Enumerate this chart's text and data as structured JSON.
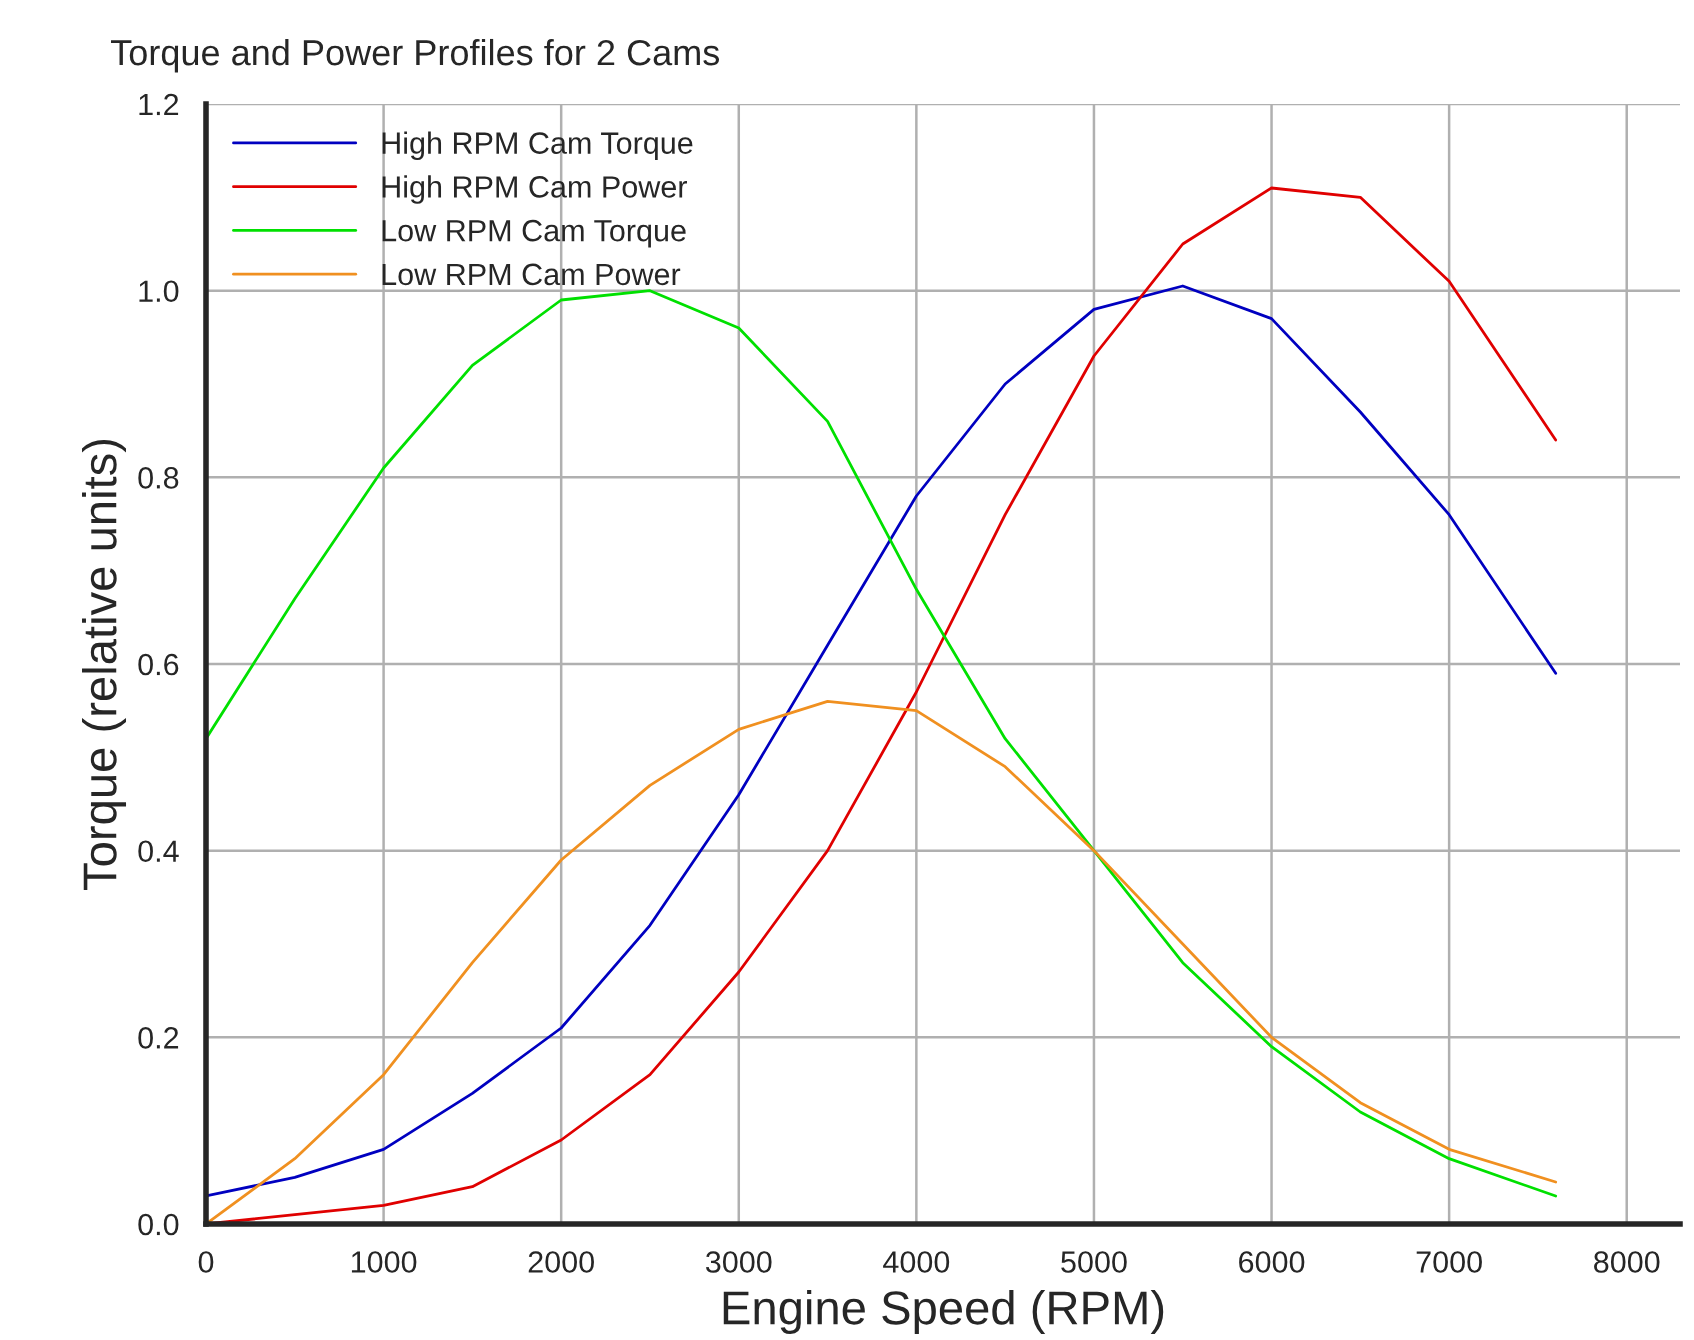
{
  "chart_data": {
    "type": "line",
    "title": "Torque and Power Profiles for 2 Cams",
    "xlabel": "Engine Speed (RPM)",
    "ylabel": "Torque (relative units)",
    "x": [
      0,
      500,
      1000,
      1500,
      2000,
      2500,
      3000,
      3500,
      4000,
      4500,
      5000,
      5500,
      6000,
      6500,
      7000,
      7600
    ],
    "series": [
      {
        "name": "High RPM Cam Torque",
        "color": "#0000c0",
        "values": [
          0.03,
          0.05,
          0.08,
          0.14,
          0.21,
          0.32,
          0.46,
          0.62,
          0.78,
          0.9,
          0.98,
          1.005,
          0.97,
          0.87,
          0.76,
          0.59
        ]
      },
      {
        "name": "High RPM Cam Power",
        "color": "#e00000",
        "values": [
          0.0,
          0.01,
          0.02,
          0.04,
          0.09,
          0.16,
          0.27,
          0.4,
          0.57,
          0.76,
          0.93,
          1.05,
          1.11,
          1.1,
          1.01,
          0.84
        ]
      },
      {
        "name": "Low RPM Cam Torque",
        "color": "#00e000",
        "values": [
          0.52,
          0.67,
          0.81,
          0.92,
          0.99,
          1.0,
          0.96,
          0.86,
          0.68,
          0.52,
          0.4,
          0.28,
          0.19,
          0.12,
          0.07,
          0.03
        ]
      },
      {
        "name": "Low RPM Cam Power",
        "color": "#f09020",
        "values": [
          0.0,
          0.07,
          0.16,
          0.28,
          0.39,
          0.47,
          0.53,
          0.56,
          0.55,
          0.49,
          0.4,
          0.3,
          0.2,
          0.13,
          0.08,
          0.045
        ]
      }
    ],
    "xlim": [
      0,
      8300
    ],
    "xticks": [
      0,
      1000,
      2000,
      3000,
      4000,
      5000,
      6000,
      7000,
      8000
    ],
    "ylim": [
      0,
      1.2
    ],
    "yticks": [
      {
        "value": 0,
        "label": "0.0"
      },
      {
        "value": 0.2,
        "label": "0.2"
      },
      {
        "value": 0.4,
        "label": "0.4"
      },
      {
        "value": 0.6,
        "label": "0.6"
      },
      {
        "value": 0.8,
        "label": "0.8"
      },
      {
        "value": 1.0,
        "label": "1.0"
      },
      {
        "value": 1.2,
        "label": "1.2"
      }
    ],
    "grid": true,
    "legend": "top left",
    "marker": "none",
    "line_style": "solid"
  }
}
